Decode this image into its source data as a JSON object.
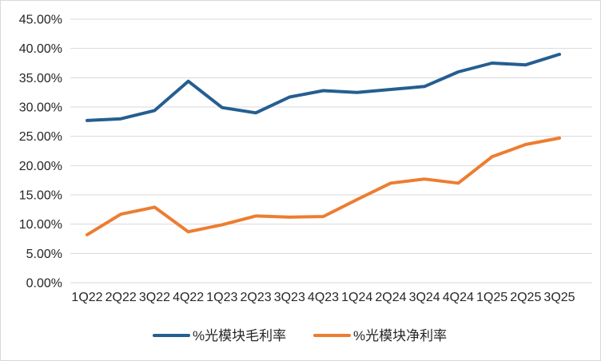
{
  "chart_data": {
    "type": "line",
    "title": "",
    "xlabel": "",
    "ylabel": "",
    "categories": [
      "1Q22",
      "2Q22",
      "3Q22",
      "4Q22",
      "1Q23",
      "2Q23",
      "3Q23",
      "4Q23",
      "1Q24",
      "2Q24",
      "3Q24",
      "4Q24",
      "1Q25",
      "2Q25",
      "3Q25"
    ],
    "series": [
      {
        "name": "%光模块毛利率",
        "color": "#255E91",
        "values": [
          27.7,
          28.0,
          29.4,
          34.4,
          29.9,
          29.0,
          31.7,
          32.8,
          32.5,
          33.0,
          33.5,
          36.0,
          37.5,
          37.2,
          39.0
        ]
      },
      {
        "name": "%光模块净利率",
        "color": "#ED7D31",
        "values": [
          8.2,
          11.7,
          12.9,
          8.7,
          9.9,
          11.4,
          11.2,
          11.3,
          14.2,
          17.0,
          17.7,
          17.0,
          21.5,
          23.6,
          24.7
        ]
      }
    ],
    "ylim": [
      0,
      45
    ],
    "ytick_step": 5,
    "y_ticks": [
      "45.00%",
      "40.00%",
      "35.00%",
      "30.00%",
      "25.00%",
      "20.00%",
      "15.00%",
      "10.00%",
      "5.00%",
      "0.00%"
    ],
    "grid": true,
    "legend_position": "bottom",
    "gridline_color": "#D9D9D9",
    "text_color": "#262626",
    "background": "#FFFFFF"
  }
}
